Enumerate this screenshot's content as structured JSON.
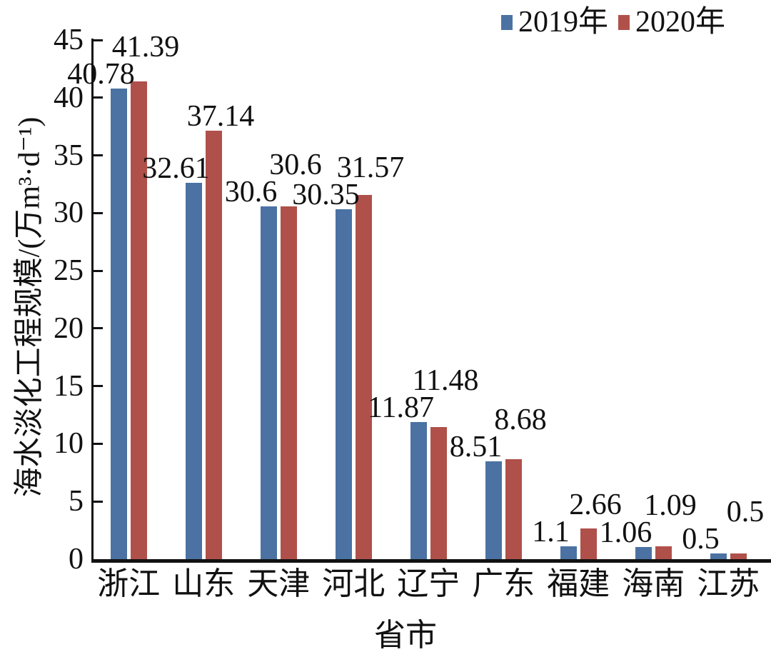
{
  "chart_data": {
    "type": "bar",
    "title": "",
    "categories": [
      "浙江",
      "山东",
      "天津",
      "河北",
      "辽宁",
      "广东",
      "福建",
      "海南",
      "江苏"
    ],
    "series": [
      {
        "name": "2019年",
        "color": "#4b72a3",
        "values": [
          40.78,
          32.61,
          30.6,
          30.35,
          11.87,
          8.51,
          1.1,
          1.06,
          0.5
        ]
      },
      {
        "name": "2020年",
        "color": "#b0504a",
        "values": [
          41.39,
          37.14,
          30.6,
          31.57,
          11.48,
          8.68,
          2.66,
          1.09,
          0.5
        ]
      }
    ],
    "xlabel": "省市",
    "ylabel": "海水淡化工程规模/(万m³·d⁻¹)",
    "ylim": [
      0,
      45
    ],
    "yticks": [
      0,
      5,
      10,
      15,
      20,
      25,
      30,
      35,
      40,
      45
    ],
    "grid": false,
    "legend_position": "top-right",
    "value_labels": true,
    "axis_color": "#111111",
    "text_color": "#111111"
  }
}
